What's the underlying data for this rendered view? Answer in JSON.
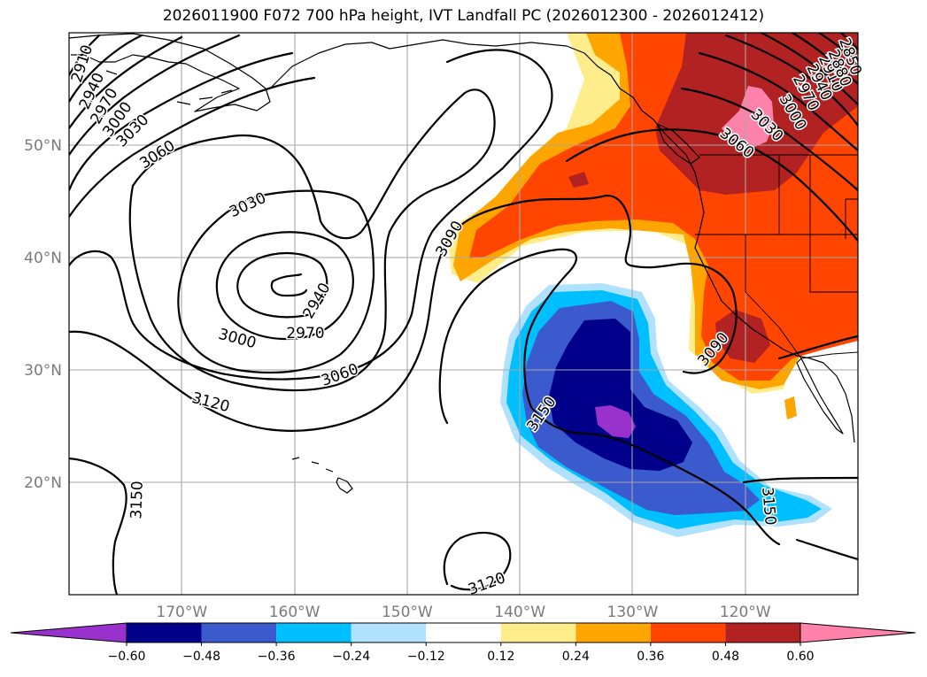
{
  "title": "2026011900 F072 700 hPa height, IVT Landfall PC (2026012300 - 2026012412)",
  "chart_data": {
    "type": "contour-map",
    "field_contours": "700 hPa geopotential height",
    "field_shaded": "IVT Landfall PC",
    "lon_range": [
      -180,
      -110
    ],
    "lat_range": [
      10,
      60
    ],
    "x_ticks": [
      "170°W",
      "160°W",
      "150°W",
      "140°W",
      "130°W",
      "120°W"
    ],
    "y_ticks": [
      "50°N",
      "40°N",
      "30°N",
      "20°N"
    ],
    "contour_labels": [
      "2910",
      "2940",
      "2970",
      "3000",
      "3030",
      "3060",
      "3030",
      "2940",
      "2970",
      "3000",
      "3060",
      "3090",
      "3120",
      "3150",
      "3150",
      "3150",
      "3120",
      "3090",
      "3060",
      "3030",
      "3000",
      "2970",
      "2940",
      "2910",
      "2880",
      "2850"
    ],
    "colorbar": {
      "boundaries": [
        "-0.60",
        "-0.48",
        "-0.36",
        "-0.24",
        "-0.12",
        "0.12",
        "0.24",
        "0.36",
        "0.48",
        "0.60"
      ],
      "colors": [
        "#9932cc",
        "#00008b",
        "#3a5acd",
        "#00bfff",
        "#b0e2ff",
        "#ffffff",
        "#ffec8b",
        "#ffa500",
        "#ff4500",
        "#b22222",
        "#ff82ab"
      ],
      "extend": "both"
    }
  }
}
